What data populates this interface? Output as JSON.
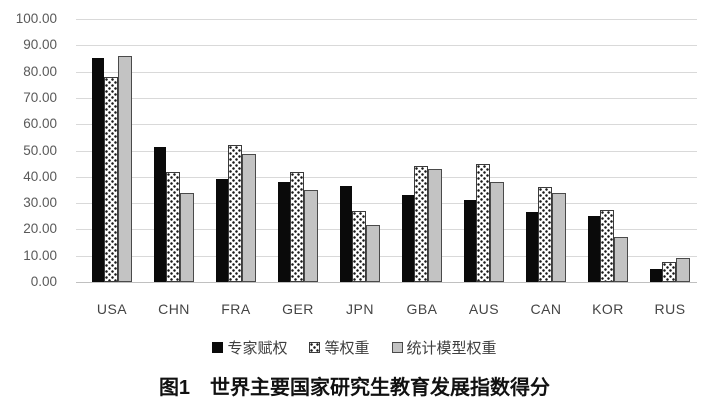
{
  "figure": {
    "caption": "图1　世界主要国家研究生教育发展指数得分"
  },
  "chart_data": {
    "type": "bar",
    "title": "图1　世界主要国家研究生教育发展指数得分",
    "categories": [
      "USA",
      "CHN",
      "FRA",
      "GER",
      "JPN",
      "GBA",
      "AUS",
      "CAN",
      "KOR",
      "RUS"
    ],
    "series": [
      {
        "name": "专家赋权",
        "values": [
          85,
          51.5,
          39,
          38,
          36.5,
          33,
          31,
          26.5,
          25,
          5
        ],
        "fill": "#0a0a0a",
        "pattern": "solid-black"
      },
      {
        "name": "等权重",
        "values": [
          78,
          42,
          52,
          42,
          27,
          44,
          45,
          36,
          27.5,
          7.5
        ],
        "fill": "#ffffff",
        "dot_color": "#1a1a1a",
        "pattern": "dots"
      },
      {
        "name": "统计模型权重",
        "values": [
          86,
          34,
          48.5,
          35,
          21.5,
          43,
          38,
          34,
          17,
          9
        ],
        "fill": "#c3c3c3",
        "pattern": "solid-gray"
      }
    ],
    "xlabel": "",
    "ylabel": "",
    "ylim": [
      0,
      100
    ],
    "ytick_step": 10,
    "ytick_labels": [
      "100.00",
      "90.00",
      "80.00",
      "70.00",
      "60.00",
      "50.00",
      "40.00",
      "30.00",
      "20.00",
      "10.00",
      "0.00"
    ],
    "grid": true,
    "gridline_color": "#d9d9d9",
    "axis_text_color": "#595959",
    "legend_position": "bottom",
    "legend": [
      "专家赋权",
      "等权重",
      "统计模型权重"
    ]
  }
}
